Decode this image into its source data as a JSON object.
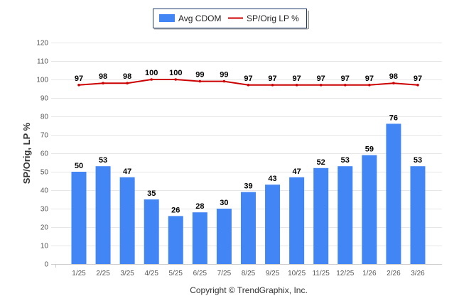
{
  "chart_data": {
    "type": "bar",
    "categories": [
      "1/25",
      "2/25",
      "3/25",
      "4/25",
      "5/25",
      "6/25",
      "7/25",
      "8/25",
      "9/25",
      "10/25",
      "11/25",
      "12/25",
      "1/26",
      "2/26",
      "3/26"
    ],
    "series": [
      {
        "name": "Avg CDOM",
        "type": "bar",
        "color": "#4285f4",
        "values": [
          50,
          53,
          47,
          35,
          26,
          28,
          30,
          39,
          43,
          47,
          52,
          53,
          59,
          76,
          53
        ]
      },
      {
        "name": "SP/Orig LP %",
        "type": "line",
        "color": "#cc0000",
        "values": [
          97,
          98,
          98,
          100,
          100,
          99,
          99,
          97,
          97,
          97,
          97,
          97,
          97,
          98,
          97
        ]
      }
    ],
    "ylabel": "SP/Orig, LP %",
    "xlabel": "",
    "ylim": [
      0,
      120
    ],
    "yticks": [
      0,
      10,
      20,
      30,
      40,
      50,
      60,
      70,
      80,
      90,
      100,
      110,
      120
    ],
    "grid": true,
    "legend": "top-center"
  },
  "footer": "Copyright © TrendGraphix, Inc."
}
